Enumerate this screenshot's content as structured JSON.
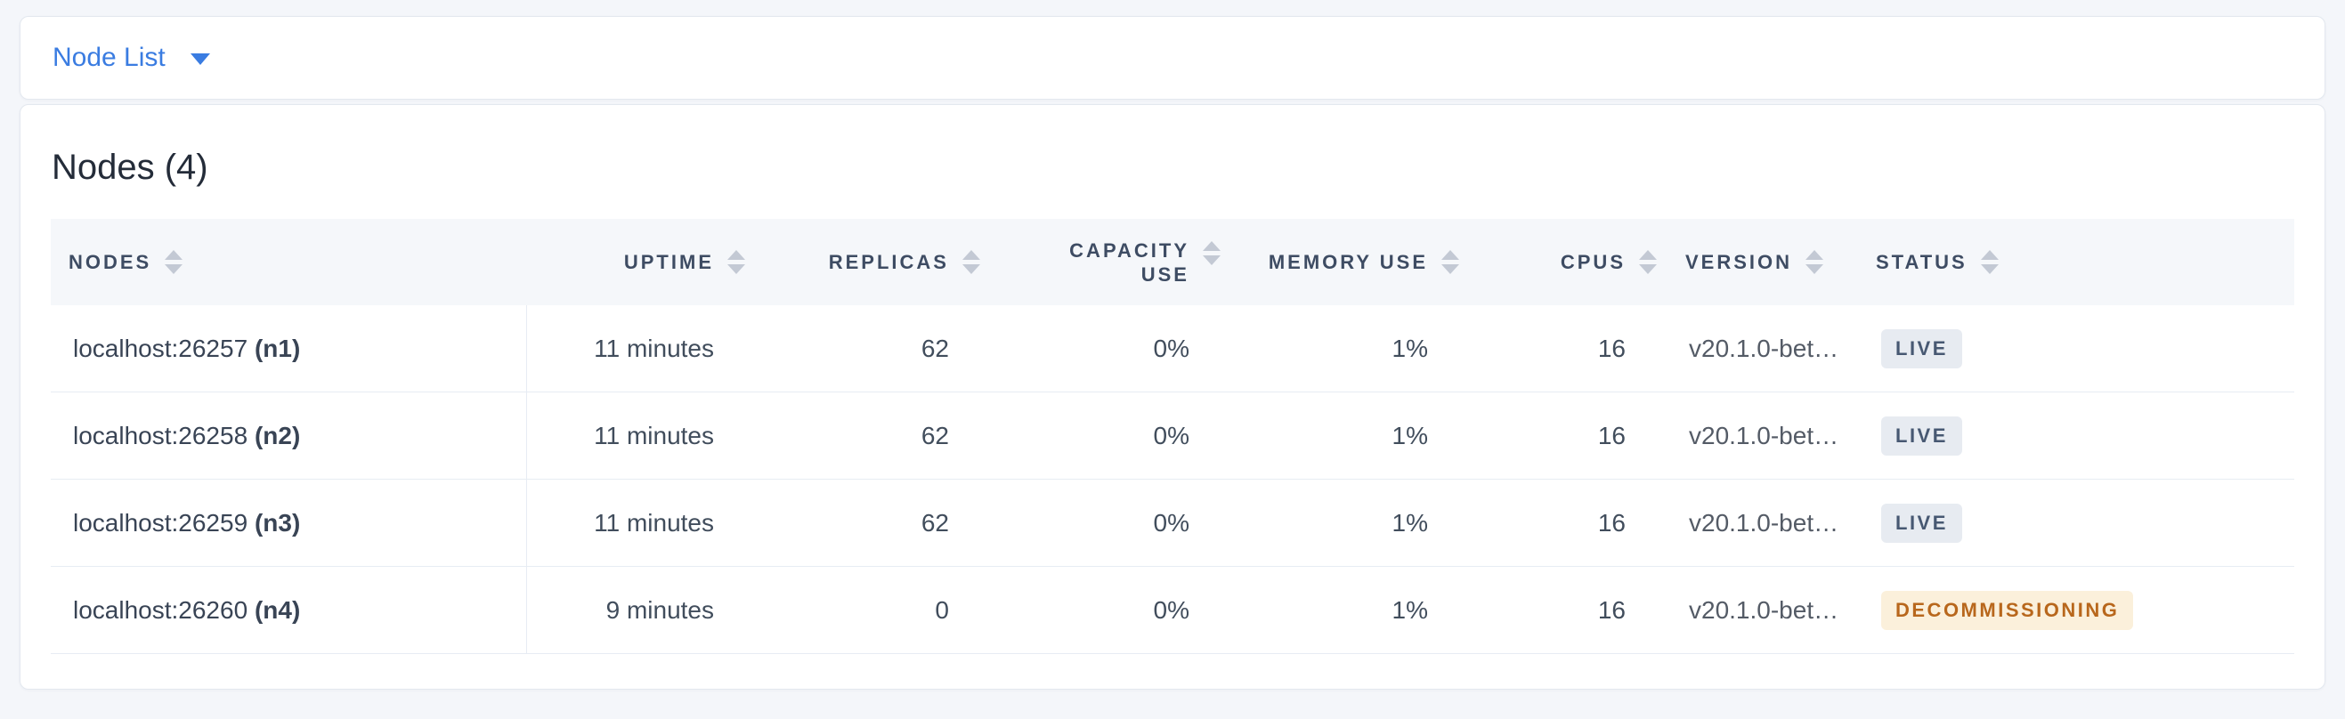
{
  "colors": {
    "page_background": "#f4f6fa",
    "card_background": "#ffffff",
    "card_border": "#e3e8ef",
    "accent_blue": "#3a7ce1",
    "header_row_background": "#f5f7fa",
    "header_text": "#3e4c63",
    "body_text": "#414d5c",
    "row_border": "#e7ecf3",
    "sort_arrow": "#c3c9d4",
    "badge_live_bg": "#e7ebf1",
    "badge_live_text": "#475872",
    "badge_decommissioning_bg": "#fbf0db",
    "badge_decommissioning_text": "#b8671c"
  },
  "toolbar": {
    "dropdown_label": "Node List",
    "caret_icon": "caret-down"
  },
  "main": {
    "title": "Nodes (4)",
    "table": {
      "columns": [
        {
          "key": "nodes",
          "label": "NODES",
          "align": "left",
          "two_line": false,
          "sortable": true
        },
        {
          "key": "uptime",
          "label": "UPTIME",
          "align": "right",
          "two_line": false,
          "sortable": true
        },
        {
          "key": "replicas",
          "label": "REPLICAS",
          "align": "right",
          "two_line": false,
          "sortable": true
        },
        {
          "key": "capacity",
          "label": "CAPACITY USE",
          "align": "right",
          "two_line": true,
          "sortable": true
        },
        {
          "key": "memory",
          "label": "MEMORY USE",
          "align": "right",
          "two_line": false,
          "sortable": true
        },
        {
          "key": "cpus",
          "label": "CPUS",
          "align": "right",
          "two_line": false,
          "sortable": true
        },
        {
          "key": "version",
          "label": "VERSION",
          "align": "left",
          "two_line": false,
          "sortable": true
        },
        {
          "key": "status",
          "label": "STATUS",
          "align": "left",
          "two_line": false,
          "sortable": true
        }
      ],
      "rows": [
        {
          "node_address": "localhost:26257",
          "node_id": "(n1)",
          "uptime": "11 minutes",
          "replicas": "62",
          "capacity_use": "0%",
          "memory_use": "1%",
          "cpus": "16",
          "version": "v20.1.0-bet…",
          "status": "LIVE",
          "status_type": "live"
        },
        {
          "node_address": "localhost:26258",
          "node_id": "(n2)",
          "uptime": "11 minutes",
          "replicas": "62",
          "capacity_use": "0%",
          "memory_use": "1%",
          "cpus": "16",
          "version": "v20.1.0-bet…",
          "status": "LIVE",
          "status_type": "live"
        },
        {
          "node_address": "localhost:26259",
          "node_id": "(n3)",
          "uptime": "11 minutes",
          "replicas": "62",
          "capacity_use": "0%",
          "memory_use": "1%",
          "cpus": "16",
          "version": "v20.1.0-bet…",
          "status": "LIVE",
          "status_type": "live"
        },
        {
          "node_address": "localhost:26260",
          "node_id": "(n4)",
          "uptime": "9 minutes",
          "replicas": "0",
          "capacity_use": "0%",
          "memory_use": "1%",
          "cpus": "16",
          "version": "v20.1.0-bet…",
          "status": "DECOMMISSIONING",
          "status_type": "decommissioning"
        }
      ]
    }
  }
}
